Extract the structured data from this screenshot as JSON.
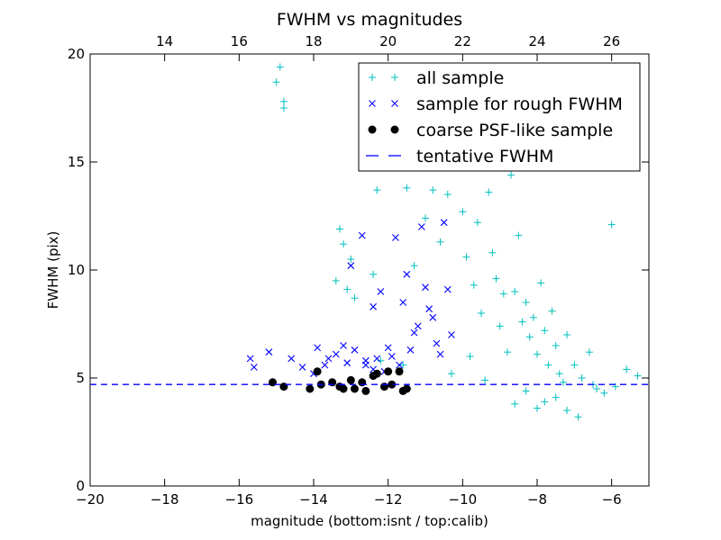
{
  "chart_data": {
    "type": "scatter",
    "title": "FWHM vs magnitudes",
    "xlabel": "magnitude (bottom:isnt / top:calib)",
    "ylabel": "FWHM (pix)",
    "xlim": [
      -20,
      -5
    ],
    "ylim": [
      0,
      20
    ],
    "x_ticks": [
      -20,
      -18,
      -16,
      -14,
      -12,
      -10,
      -8,
      -6
    ],
    "x_tick_labels": [
      "−20",
      "−18",
      "−16",
      "−14",
      "−12",
      "−10",
      "−8",
      "−6"
    ],
    "y_ticks": [
      0,
      5,
      10,
      15,
      20
    ],
    "y_tick_labels": [
      "0",
      "5",
      "10",
      "15",
      "20"
    ],
    "top_axis": {
      "offset_from_bottom": 32.0,
      "ticks": [
        14,
        16,
        18,
        20,
        22,
        24,
        26
      ],
      "tick_labels": [
        "14",
        "16",
        "18",
        "20",
        "22",
        "24",
        "26"
      ]
    },
    "grid": false,
    "legend_position": "top-right",
    "series": [
      {
        "name": "all sample",
        "marker": "+",
        "color": "#00BFBF",
        "x": [
          -15.0,
          -14.9,
          -14.8,
          -14.8,
          -13.4,
          -13.3,
          -13.2,
          -13.1,
          -13.0,
          -12.9,
          -12.4,
          -12.3,
          -11.5,
          -11.3,
          -11.0,
          -10.8,
          -10.6,
          -10.4,
          -10.0,
          -9.9,
          -9.7,
          -9.6,
          -9.5,
          -9.3,
          -9.2,
          -9.1,
          -9.0,
          -8.9,
          -8.8,
          -8.7,
          -8.6,
          -8.5,
          -8.4,
          -8.3,
          -8.2,
          -8.1,
          -8.0,
          -7.9,
          -7.8,
          -7.7,
          -7.6,
          -7.5,
          -7.4,
          -7.3,
          -7.2,
          -7.0,
          -6.8,
          -6.6,
          -6.4,
          -6.2,
          -5.9,
          -5.6,
          -5.3,
          -12.2,
          -11.6,
          -10.3,
          -9.8,
          -9.4,
          -8.6,
          -8.3,
          -8.0,
          -7.8,
          -7.5,
          -7.2,
          -6.9,
          -6.5,
          -6.0
        ],
        "y": [
          18.7,
          19.4,
          17.8,
          17.5,
          9.5,
          11.9,
          11.2,
          9.1,
          10.5,
          8.7,
          9.8,
          13.7,
          13.8,
          10.2,
          12.4,
          13.7,
          11.3,
          13.5,
          12.7,
          10.6,
          9.3,
          12.2,
          8.0,
          13.6,
          10.8,
          9.6,
          7.4,
          8.9,
          6.2,
          14.4,
          9.0,
          11.6,
          7.6,
          8.5,
          6.9,
          7.8,
          6.1,
          9.4,
          7.2,
          5.6,
          8.1,
          6.5,
          5.2,
          4.8,
          7.0,
          5.6,
          5.0,
          6.2,
          4.5,
          4.3,
          4.6,
          5.4,
          5.1,
          5.8,
          5.6,
          5.2,
          6.0,
          4.9,
          3.8,
          4.4,
          3.6,
          3.9,
          4.1,
          3.5,
          3.2,
          4.7,
          12.1
        ]
      },
      {
        "name": "sample for rough FWHM",
        "marker": "x",
        "color": "#0000FF",
        "x": [
          -15.7,
          -15.6,
          -15.2,
          -14.6,
          -14.3,
          -14.0,
          -13.9,
          -13.7,
          -13.6,
          -13.4,
          -13.2,
          -13.1,
          -13.0,
          -12.9,
          -12.7,
          -12.6,
          -12.4,
          -12.2,
          -12.0,
          -11.8,
          -11.6,
          -11.5,
          -11.3,
          -11.1,
          -10.9,
          -10.7,
          -10.5,
          -10.4,
          -10.3,
          -12.3,
          -12.1,
          -11.9,
          -11.7,
          -11.4,
          -11.2,
          -10.8,
          -10.6,
          -11.0,
          -12.6,
          -12.4
        ],
        "y": [
          5.9,
          5.5,
          6.2,
          5.9,
          5.5,
          5.2,
          6.4,
          5.6,
          5.9,
          6.1,
          6.5,
          5.7,
          10.2,
          6.3,
          11.6,
          5.6,
          8.3,
          9.0,
          6.4,
          11.5,
          8.5,
          9.8,
          7.1,
          12.0,
          8.2,
          6.6,
          12.2,
          9.1,
          7.0,
          5.9,
          5.3,
          6.0,
          5.6,
          6.3,
          7.4,
          7.8,
          6.1,
          9.2,
          5.8,
          5.4
        ]
      },
      {
        "name": "coarse PSF-like sample",
        "marker": "o",
        "color": "#000000",
        "x": [
          -15.1,
          -14.8,
          -14.1,
          -13.9,
          -13.8,
          -13.5,
          -13.3,
          -13.2,
          -13.0,
          -12.9,
          -12.7,
          -12.6,
          -12.4,
          -12.3,
          -12.1,
          -12.0,
          -11.9,
          -11.7,
          -11.6,
          -11.5
        ],
        "y": [
          4.8,
          4.6,
          4.5,
          5.3,
          4.7,
          4.8,
          4.6,
          4.5,
          4.9,
          4.5,
          4.8,
          4.4,
          5.1,
          5.2,
          4.6,
          5.3,
          4.7,
          5.3,
          4.4,
          4.5
        ]
      },
      {
        "name": "tentative FWHM",
        "marker": "dashed-line",
        "color": "#0000FF",
        "y_const": 4.7
      }
    ]
  }
}
